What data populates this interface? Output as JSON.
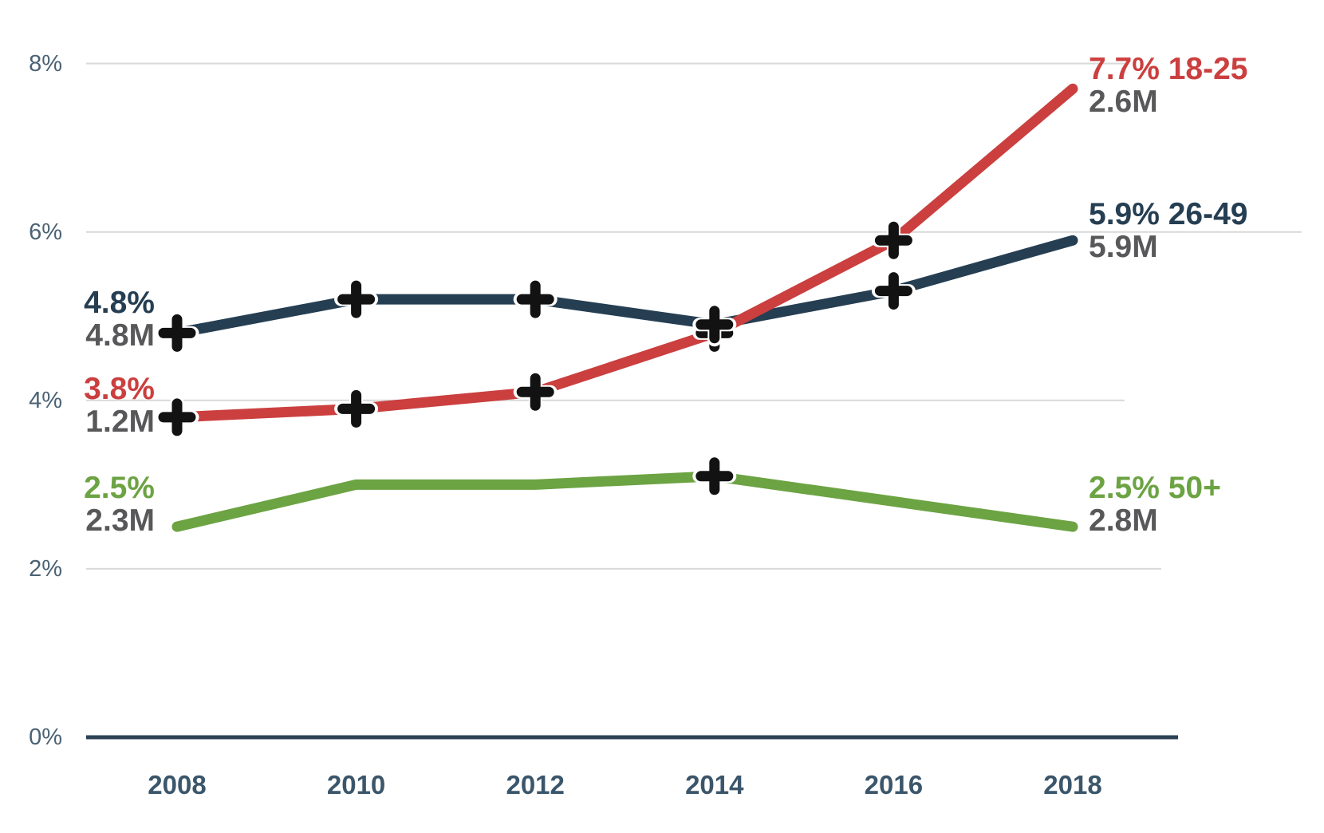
{
  "chart_data": {
    "type": "line",
    "title": "",
    "xlabel": "",
    "ylabel": "",
    "categories": [
      "2008",
      "2010",
      "2012",
      "2014",
      "2016",
      "2018"
    ],
    "ylim": [
      0,
      8
    ],
    "yticks": [
      {
        "label": "0%",
        "value": 0
      },
      {
        "label": "2%",
        "value": 2
      },
      {
        "label": "4%",
        "value": 4
      },
      {
        "label": "6%",
        "value": 6
      },
      {
        "label": "8%",
        "value": 8
      }
    ],
    "grid": "horizontal-light",
    "legend_position": "end-of-line-labels",
    "marker_shape": "plus",
    "marker_color": "#121212",
    "count_label_color": "#58585a",
    "series": [
      {
        "name": "18-25",
        "color": "#cb3f3f",
        "values": [
          3.8,
          3.9,
          4.1,
          4.8,
          5.9,
          7.7
        ],
        "markers": [
          true,
          true,
          true,
          true,
          true,
          false
        ],
        "start_label": {
          "pct": "3.8%",
          "count": "1.2M"
        },
        "end_label": {
          "pct": "7.7%",
          "group": "18-25",
          "count": "2.6M"
        }
      },
      {
        "name": "26-49",
        "color": "#253e52",
        "values": [
          4.8,
          5.2,
          5.2,
          4.9,
          5.3,
          5.9
        ],
        "markers": [
          true,
          true,
          true,
          true,
          true,
          false
        ],
        "start_label": {
          "pct": "4.8%",
          "count": "4.8M"
        },
        "end_label": {
          "pct": "5.9%",
          "group": "26-49",
          "count": "5.9M"
        }
      },
      {
        "name": "50+",
        "color": "#6ca343",
        "values": [
          2.5,
          3.0,
          3.0,
          3.1,
          2.8,
          2.5
        ],
        "markers": [
          false,
          false,
          false,
          true,
          false,
          false
        ],
        "start_label": {
          "pct": "2.5%",
          "count": "2.3M"
        },
        "end_label": {
          "pct": "2.5%",
          "group": "50+",
          "count": "2.8M"
        }
      }
    ],
    "axis_colors": {
      "tick_label": "#4b6274",
      "year_label": "#3b566b",
      "gridline": "#d9d9d9",
      "baseline": "#2b4254"
    }
  }
}
